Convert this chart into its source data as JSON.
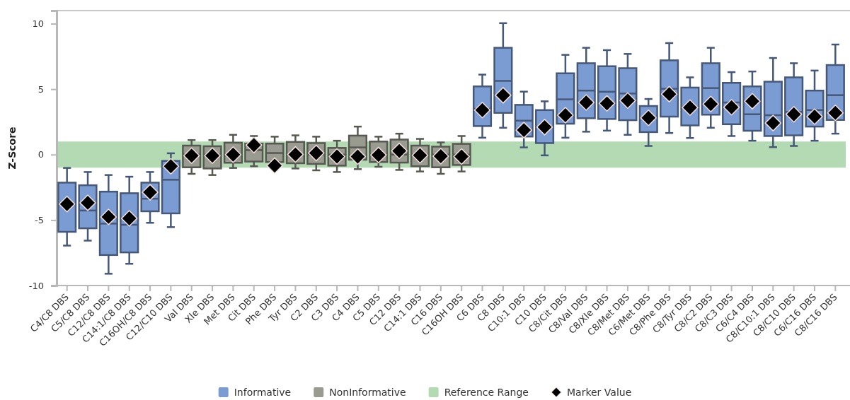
{
  "chart_data": {
    "type": "box",
    "ylabel": "Z-Score",
    "categories": [
      "C4/C8 DBS",
      "C5/C8 DBS",
      "C12/C8 DBS",
      "C14:1/C8 DBS",
      "C16OH/C8 DBS",
      "C12/C10 DBS",
      "Val DBS",
      "Xle DBS",
      "Met DBS",
      "Cit DBS",
      "Phe DBS",
      "Tyr DBS",
      "C2 DBS",
      "C3 DBS",
      "C4 DBS",
      "C5 DBS",
      "C12 DBS",
      "C14:1 DBS",
      "C16 DBS",
      "C16OH DBS",
      "C6 DBS",
      "C8 DBS",
      "C10:1 DBS",
      "C10 DBS",
      "C8/Cit DBS",
      "C8/Val DBS",
      "C8/Xle DBS",
      "C8/Met DBS",
      "C6/Met DBS",
      "C8/Phe DBS",
      "C8/Tyr DBS",
      "C8/C2 DBS",
      "C8/C3 DBS",
      "C6/C4 DBS",
      "C8/C10:1 DBS",
      "C8/C10 DBS",
      "C6/C16 DBS",
      "C8/C16 DBS"
    ],
    "ylim": [
      -10,
      11
    ],
    "yticks": [
      -10,
      -5,
      0,
      5,
      10
    ],
    "grid": false,
    "legend": "bottom",
    "bands": [
      {
        "axis": "y",
        "from": -1,
        "to": 1,
        "label": "Reference Range",
        "color": "#b3dab3"
      }
    ],
    "series": [
      {
        "name": "Informative",
        "color": "#7b9bd3",
        "boxes": [
          {
            "low": -6.95,
            "q1": -5.9,
            "median": -3.8,
            "q3": -2.14,
            "high": -1.02
          },
          {
            "low": -6.57,
            "q1": -5.63,
            "median": -4.27,
            "q3": -2.34,
            "high": -1.33
          },
          {
            "low": -9.1,
            "q1": -7.67,
            "median": -5.27,
            "q3": -2.83,
            "high": -1.56
          },
          {
            "low": -8.34,
            "q1": -7.47,
            "median": -5.36,
            "q3": -2.95,
            "high": -1.69
          },
          {
            "low": -5.21,
            "q1": -4.33,
            "median": -3.37,
            "q3": -2.14,
            "high": -1.33
          },
          {
            "low": -5.54,
            "q1": -4.49,
            "median": -1.92,
            "q3": -0.48,
            "high": 0.1
          },
          null,
          null,
          null,
          null,
          null,
          null,
          null,
          null,
          null,
          null,
          null,
          null,
          null,
          null,
          {
            "low": 1.29,
            "q1": 2.18,
            "median": 3.5,
            "q3": 5.21,
            "high": 6.11
          },
          {
            "low": 2.05,
            "q1": 3.19,
            "median": 5.63,
            "q3": 8.16,
            "high": 10.04
          },
          {
            "low": 0.55,
            "q1": 1.38,
            "median": 2.59,
            "q3": 3.8,
            "high": 4.81
          },
          {
            "low": -0.06,
            "q1": 0.88,
            "median": 2.1,
            "q3": 3.4,
            "high": 4.07
          },
          {
            "low": 1.29,
            "q1": 2.36,
            "median": 4.22,
            "q3": 6.21,
            "high": 7.62
          },
          {
            "low": 1.75,
            "q1": 2.78,
            "median": 4.89,
            "q3": 6.98,
            "high": 8.16
          },
          {
            "low": 1.83,
            "q1": 2.72,
            "median": 4.8,
            "q3": 6.75,
            "high": 7.98
          },
          {
            "low": 1.51,
            "q1": 2.63,
            "median": 4.67,
            "q3": 6.6,
            "high": 7.69
          },
          {
            "low": 0.66,
            "q1": 1.72,
            "median": 2.8,
            "q3": 3.71,
            "high": 4.25
          },
          {
            "low": 1.65,
            "q1": 2.9,
            "median": 5.03,
            "q3": 7.2,
            "high": 8.52
          },
          {
            "low": 1.27,
            "q1": 2.23,
            "median": 3.6,
            "q3": 5.12,
            "high": 5.9
          },
          {
            "low": 2.05,
            "q1": 3.05,
            "median": 5.08,
            "q3": 6.98,
            "high": 8.16
          },
          {
            "low": 1.42,
            "q1": 2.32,
            "median": 3.98,
            "q3": 5.48,
            "high": 6.3
          },
          {
            "low": 1.06,
            "q1": 1.82,
            "median": 3.08,
            "q3": 5.21,
            "high": 6.35
          },
          {
            "low": 0.57,
            "q1": 1.42,
            "median": 3.01,
            "q3": 5.57,
            "high": 7.38
          },
          {
            "low": 0.66,
            "q1": 1.47,
            "median": 3.26,
            "q3": 5.9,
            "high": 6.98
          },
          {
            "low": 1.06,
            "q1": 2.14,
            "median": 3.4,
            "q3": 4.89,
            "high": 6.42
          },
          {
            "low": 1.6,
            "q1": 2.65,
            "median": 4.54,
            "q3": 6.84,
            "high": 8.41
          }
        ]
      },
      {
        "name": "NonInformative",
        "color": "#9a9b90",
        "boxes": [
          null,
          null,
          null,
          null,
          null,
          null,
          {
            "low": -1.47,
            "q1": -0.97,
            "median": 0,
            "q3": 0.69,
            "high": 1.11
          },
          {
            "low": -1.56,
            "q1": -1.06,
            "median": 0,
            "q3": 0.64,
            "high": 1.11
          },
          {
            "low": -1.02,
            "q1": -0.62,
            "median": 0,
            "q3": 0.91,
            "high": 1.51
          },
          {
            "low": -0.89,
            "q1": -0.53,
            "median": 0.34,
            "q3": 0.84,
            "high": 1.42
          },
          {
            "low": -0.95,
            "q1": -0.57,
            "median": 0.12,
            "q3": 0.84,
            "high": 1.37
          },
          {
            "low": -1.06,
            "q1": -0.66,
            "median": 0,
            "q3": 0.97,
            "high": 1.47
          },
          {
            "low": -1.2,
            "q1": -0.71,
            "median": 0,
            "q3": 0.88,
            "high": 1.37
          },
          {
            "low": -1.33,
            "q1": -0.84,
            "median": 0,
            "q3": 0.51,
            "high": 1.06
          },
          {
            "low": -1.11,
            "q1": -0.39,
            "median": 0.55,
            "q3": 1.45,
            "high": 2.14
          },
          {
            "low": -0.93,
            "q1": -0.57,
            "median": 0,
            "q3": 1.0,
            "high": 1.37
          },
          {
            "low": -1.17,
            "q1": -0.61,
            "median": 0,
            "q3": 1.15,
            "high": 1.6
          },
          {
            "low": -1.29,
            "q1": -0.89,
            "median": 0,
            "q3": 0.69,
            "high": 1.2
          },
          {
            "low": -1.47,
            "q1": -0.97,
            "median": 0,
            "q3": 0.61,
            "high": 0.93
          },
          {
            "low": -1.29,
            "q1": -0.79,
            "median": 0,
            "q3": 0.82,
            "high": 1.42
          },
          null,
          null,
          null,
          null,
          null,
          null,
          null,
          null,
          null,
          null,
          null,
          null,
          null,
          null,
          null,
          null,
          null,
          null
        ]
      },
      {
        "name": "Marker Value",
        "type": "scatter",
        "color": "#000000",
        "marker": "diamond",
        "values": [
          -3.78,
          -3.68,
          -4.76,
          -4.87,
          -2.88,
          -0.89,
          -0.08,
          -0.08,
          0,
          0.73,
          -0.84,
          0.01,
          0.12,
          -0.15,
          -0.15,
          -0.03,
          0.28,
          -0.05,
          -0.12,
          -0.15,
          3.4,
          4.53,
          1.87,
          2.1,
          3.01,
          3.98,
          3.91,
          4.13,
          2.81,
          4.62,
          3.59,
          3.86,
          3.62,
          4.08,
          2.41,
          3.08,
          2.9,
          3.19
        ]
      }
    ]
  }
}
